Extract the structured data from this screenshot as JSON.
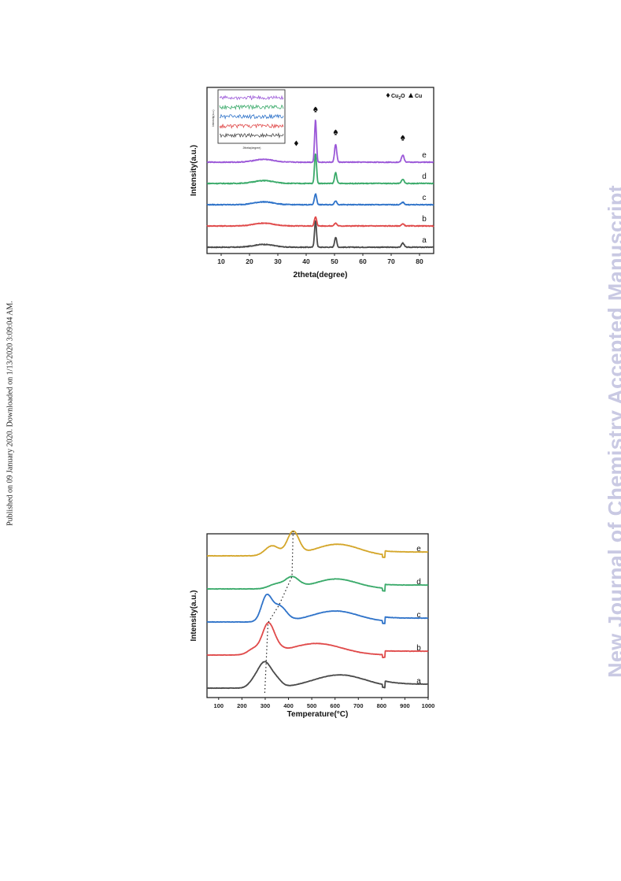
{
  "watermark": "New Journal of Chemistry Accepted Manuscript",
  "publication_note": "Published on 09 January 2020. Downloaded on 1/13/2020 3:09:04 AM.",
  "chart_data": [
    {
      "type": "line",
      "xlabel": "2theta(degree)",
      "ylabel": "Intensity(a.u.)",
      "xlim": [
        5,
        85
      ],
      "xticks": [
        10,
        20,
        30,
        40,
        50,
        60,
        70,
        80
      ],
      "legend": [
        {
          "marker": "diamond",
          "label": "Cu",
          "sub": "2",
          "suffix": "O"
        },
        {
          "marker": "triangle",
          "label": "Cu"
        }
      ],
      "peak_markers": [
        {
          "type": "diamond",
          "x": 36.5
        },
        {
          "type": "spade",
          "x": 43.3
        },
        {
          "type": "spade",
          "x": 50.4
        },
        {
          "type": "spade",
          "x": 74.1
        }
      ],
      "inset": {
        "xlabel": "2theta(degree)",
        "ylabel": "Intensity(a.u.)"
      },
      "series": [
        {
          "name": "a",
          "color": "#4a4a4a",
          "peaks": [
            {
              "x": 25,
              "h": 0.3,
              "w": 3.5
            },
            {
              "x": 43.3,
              "h": 2.8,
              "w": 0.35
            },
            {
              "x": 50.4,
              "h": 1.05,
              "w": 0.38
            },
            {
              "x": 74.1,
              "h": 0.45,
              "w": 0.45
            }
          ]
        },
        {
          "name": "b",
          "color": "#e04a4a",
          "peaks": [
            {
              "x": 25,
              "h": 0.3,
              "w": 3.5
            },
            {
              "x": 43.3,
              "h": 0.95,
              "w": 0.4
            },
            {
              "x": 50.4,
              "h": 0.3,
              "w": 0.45
            },
            {
              "x": 74.1,
              "h": 0.2,
              "w": 0.5
            }
          ]
        },
        {
          "name": "c",
          "color": "#2f73c9",
          "peaks": [
            {
              "x": 25,
              "h": 0.3,
              "w": 3.5
            },
            {
              "x": 43.3,
              "h": 1.15,
              "w": 0.4
            },
            {
              "x": 50.4,
              "h": 0.4,
              "w": 0.45
            },
            {
              "x": 74.1,
              "h": 0.25,
              "w": 0.5
            }
          ]
        },
        {
          "name": "d",
          "color": "#3aaa6a",
          "peaks": [
            {
              "x": 25,
              "h": 0.3,
              "w": 3.5
            },
            {
              "x": 43.3,
              "h": 3.2,
              "w": 0.35
            },
            {
              "x": 50.4,
              "h": 1.15,
              "w": 0.38
            },
            {
              "x": 74.1,
              "h": 0.45,
              "w": 0.45
            }
          ]
        },
        {
          "name": "e",
          "color": "#9b58d8",
          "peaks": [
            {
              "x": 25,
              "h": 0.3,
              "w": 3.5
            },
            {
              "x": 43.3,
              "h": 4.5,
              "w": 0.33
            },
            {
              "x": 50.4,
              "h": 1.9,
              "w": 0.38
            },
            {
              "x": 74.1,
              "h": 0.75,
              "w": 0.45
            }
          ]
        }
      ]
    },
    {
      "type": "line",
      "xlabel": "Temperature(°C)",
      "ylabel": "Intensity(a.u.)",
      "xlim": [
        50,
        1000
      ],
      "xticks": [
        100,
        200,
        300,
        400,
        500,
        600,
        700,
        800,
        900,
        1000
      ],
      "series": [
        {
          "name": "a",
          "color": "#4a4a4a",
          "peaks": [
            {
              "x": 250,
              "h": 0.5,
              "w": 22
            },
            {
              "x": 298,
              "h": 2.3,
              "w": 28
            },
            {
              "x": 350,
              "h": 0.6,
              "w": 22
            },
            {
              "x": 620,
              "h": 1.2,
              "w": 115
            }
          ]
        },
        {
          "name": "b",
          "color": "#e04a4a",
          "peaks": [
            {
              "x": 250,
              "h": 0.5,
              "w": 25
            },
            {
              "x": 312,
              "h": 2.6,
              "w": 25
            },
            {
              "x": 350,
              "h": 0.4,
              "w": 25
            },
            {
              "x": 520,
              "h": 1.05,
              "w": 110
            }
          ]
        },
        {
          "name": "c",
          "color": "#2f73c9",
          "peaks": [
            {
              "x": 305,
              "h": 2.2,
              "w": 22
            },
            {
              "x": 360,
              "h": 1.4,
              "w": 30
            },
            {
              "x": 600,
              "h": 1.0,
              "w": 100
            }
          ]
        },
        {
          "name": "d",
          "color": "#3aaa6a",
          "peaks": [
            {
              "x": 345,
              "h": 0.4,
              "w": 30
            },
            {
              "x": 415,
              "h": 1.0,
              "w": 30
            },
            {
              "x": 605,
              "h": 0.9,
              "w": 90
            }
          ]
        },
        {
          "name": "e",
          "color": "#d4a62a",
          "peaks": [
            {
              "x": 330,
              "h": 0.9,
              "w": 30
            },
            {
              "x": 420,
              "h": 2.1,
              "w": 25
            },
            {
              "x": 610,
              "h": 1.05,
              "w": 95
            }
          ]
        }
      ],
      "peak_guide_x": [
        298,
        312,
        360,
        415,
        420
      ]
    }
  ]
}
